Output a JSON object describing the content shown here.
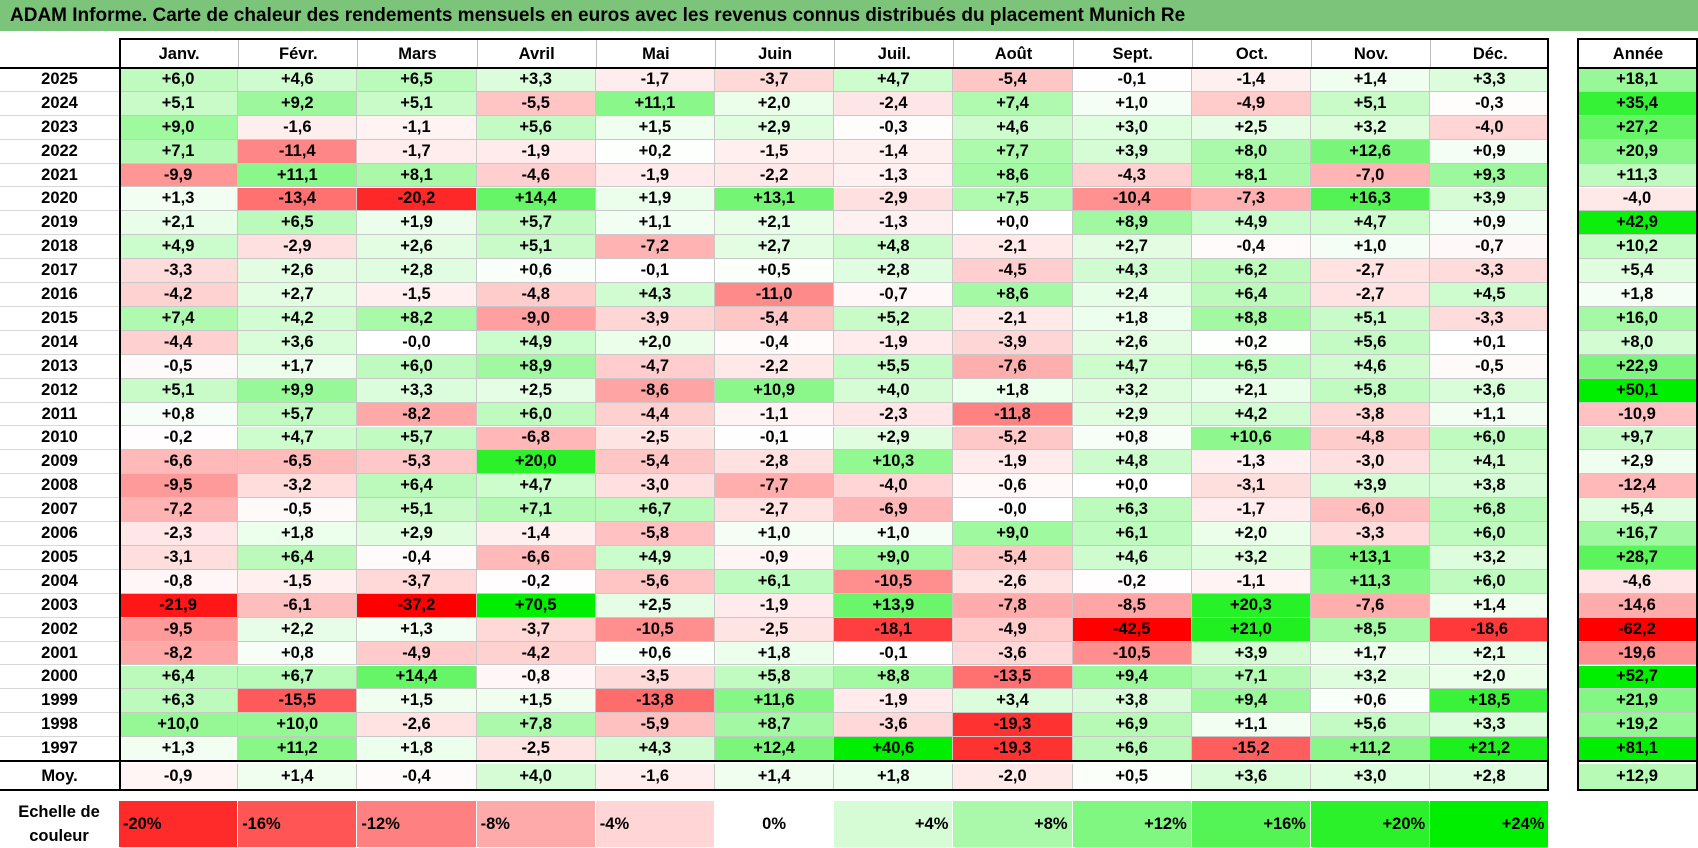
{
  "title": "ADAM Informe. Carte de chaleur des rendements mensuels en euros avec les revenus connus distribués du placement Munich Re",
  "chart_data": {
    "type": "heatmap",
    "title": "ADAM Informe. Carte de chaleur des rendements mensuels en euros avec les revenus connus distribués du placement Munich Re",
    "months": [
      "Janv.",
      "Févr.",
      "Mars",
      "Avril",
      "Mai",
      "Juin",
      "Juil.",
      "Août",
      "Sept.",
      "Oct.",
      "Nov.",
      "Déc."
    ],
    "annual_header": "Année",
    "rows": [
      {
        "year": "2025",
        "values": [
          "+6,0",
          "+4,6",
          "+6,5",
          "+3,3",
          "-1,7",
          "-3,7",
          "+4,7",
          "-5,4",
          "-0,1",
          "-1,4",
          "+1,4",
          "+3,3"
        ],
        "annual": "+18,1"
      },
      {
        "year": "2024",
        "values": [
          "+5,1",
          "+9,2",
          "+5,1",
          "-5,5",
          "+11,1",
          "+2,0",
          "-2,4",
          "+7,4",
          "+1,0",
          "-4,9",
          "+5,1",
          "-0,3"
        ],
        "annual": "+35,4"
      },
      {
        "year": "2023",
        "values": [
          "+9,0",
          "-1,6",
          "-1,1",
          "+5,6",
          "+1,5",
          "+2,9",
          "-0,3",
          "+4,6",
          "+3,0",
          "+2,5",
          "+3,2",
          "-4,0"
        ],
        "annual": "+27,2"
      },
      {
        "year": "2022",
        "values": [
          "+7,1",
          "-11,4",
          "-1,7",
          "-1,9",
          "+0,2",
          "-1,5",
          "-1,4",
          "+7,7",
          "+3,9",
          "+8,0",
          "+12,6",
          "+0,9"
        ],
        "annual": "+20,9"
      },
      {
        "year": "2021",
        "values": [
          "-9,9",
          "+11,1",
          "+8,1",
          "-4,6",
          "-1,9",
          "-2,2",
          "-1,3",
          "+8,6",
          "-4,3",
          "+8,1",
          "-7,0",
          "+9,3"
        ],
        "annual": "+11,3"
      },
      {
        "year": "2020",
        "values": [
          "+1,3",
          "-13,4",
          "-20,2",
          "+14,4",
          "+1,9",
          "+13,1",
          "-2,9",
          "+7,5",
          "-10,4",
          "-7,3",
          "+16,3",
          "+3,9"
        ],
        "annual": "-4,0"
      },
      {
        "year": "2019",
        "values": [
          "+2,1",
          "+6,5",
          "+1,9",
          "+5,7",
          "+1,1",
          "+2,1",
          "-1,3",
          "+0,0",
          "+8,9",
          "+4,9",
          "+4,7",
          "+0,9"
        ],
        "annual": "+42,9"
      },
      {
        "year": "2018",
        "values": [
          "+4,9",
          "-2,9",
          "+2,6",
          "+5,1",
          "-7,2",
          "+2,7",
          "+4,8",
          "-2,1",
          "+2,7",
          "-0,4",
          "+1,0",
          "-0,7"
        ],
        "annual": "+10,2"
      },
      {
        "year": "2017",
        "values": [
          "-3,3",
          "+2,6",
          "+2,8",
          "+0,6",
          "-0,1",
          "+0,5",
          "+2,8",
          "-4,5",
          "+4,3",
          "+6,2",
          "-2,7",
          "-3,3"
        ],
        "annual": "+5,4"
      },
      {
        "year": "2016",
        "values": [
          "-4,2",
          "+2,7",
          "-1,5",
          "-4,8",
          "+4,3",
          "-11,0",
          "-0,7",
          "+8,6",
          "+2,4",
          "+6,4",
          "-2,7",
          "+4,5"
        ],
        "annual": "+1,8"
      },
      {
        "year": "2015",
        "values": [
          "+7,4",
          "+4,2",
          "+8,2",
          "-9,0",
          "-3,9",
          "-5,4",
          "+5,2",
          "-2,1",
          "+1,8",
          "+8,8",
          "+5,1",
          "-3,3"
        ],
        "annual": "+16,0"
      },
      {
        "year": "2014",
        "values": [
          "-4,4",
          "+3,6",
          "-0,0",
          "+4,9",
          "+2,0",
          "-0,4",
          "-1,9",
          "-3,9",
          "+2,6",
          "+0,2",
          "+5,6",
          "+0,1"
        ],
        "annual": "+8,0"
      },
      {
        "year": "2013",
        "values": [
          "-0,5",
          "+1,7",
          "+6,0",
          "+8,9",
          "-4,7",
          "-2,2",
          "+5,5",
          "-7,6",
          "+4,7",
          "+6,5",
          "+4,6",
          "-0,5"
        ],
        "annual": "+22,9"
      },
      {
        "year": "2012",
        "values": [
          "+5,1",
          "+9,9",
          "+3,3",
          "+2,5",
          "-8,6",
          "+10,9",
          "+4,0",
          "+1,8",
          "+3,2",
          "+2,1",
          "+5,8",
          "+3,6"
        ],
        "annual": "+50,1"
      },
      {
        "year": "2011",
        "values": [
          "+0,8",
          "+5,7",
          "-8,2",
          "+6,0",
          "-4,4",
          "-1,1",
          "-2,3",
          "-11,8",
          "+2,9",
          "+4,2",
          "-3,8",
          "+1,1"
        ],
        "annual": "-10,9"
      },
      {
        "year": "2010",
        "values": [
          "-0,2",
          "+4,7",
          "+5,7",
          "-6,8",
          "-2,5",
          "-0,1",
          "+2,9",
          "-5,2",
          "+0,8",
          "+10,6",
          "-4,8",
          "+6,0"
        ],
        "annual": "+9,7"
      },
      {
        "year": "2009",
        "values": [
          "-6,6",
          "-6,5",
          "-5,3",
          "+20,0",
          "-5,4",
          "-2,8",
          "+10,3",
          "-1,9",
          "+4,8",
          "-1,3",
          "-3,0",
          "+4,1"
        ],
        "annual": "+2,9"
      },
      {
        "year": "2008",
        "values": [
          "-9,5",
          "-3,2",
          "+6,4",
          "+4,7",
          "-3,0",
          "-7,7",
          "-4,0",
          "-0,6",
          "+0,0",
          "-3,1",
          "+3,9",
          "+3,8"
        ],
        "annual": "-12,4"
      },
      {
        "year": "2007",
        "values": [
          "-7,2",
          "-0,5",
          "+5,1",
          "+7,1",
          "+6,7",
          "-2,7",
          "-6,9",
          "-0,0",
          "+6,3",
          "-1,7",
          "-6,0",
          "+6,8"
        ],
        "annual": "+5,4"
      },
      {
        "year": "2006",
        "values": [
          "-2,3",
          "+1,8",
          "+2,9",
          "-1,4",
          "-5,8",
          "+1,0",
          "+1,0",
          "+9,0",
          "+6,1",
          "+2,0",
          "-3,3",
          "+6,0"
        ],
        "annual": "+16,7"
      },
      {
        "year": "2005",
        "values": [
          "-3,1",
          "+6,4",
          "-0,4",
          "-6,6",
          "+4,9",
          "-0,9",
          "+9,0",
          "-5,4",
          "+4,6",
          "+3,2",
          "+13,1",
          "+3,2"
        ],
        "annual": "+28,7"
      },
      {
        "year": "2004",
        "values": [
          "-0,8",
          "-1,5",
          "-3,7",
          "-0,2",
          "-5,6",
          "+6,1",
          "-10,5",
          "-2,6",
          "-0,2",
          "-1,1",
          "+11,3",
          "+6,0"
        ],
        "annual": "-4,6"
      },
      {
        "year": "2003",
        "values": [
          "-21,9",
          "-6,1",
          "-37,2",
          "+70,5",
          "+2,5",
          "-1,9",
          "+13,9",
          "-7,8",
          "-8,5",
          "+20,3",
          "-7,6",
          "+1,4"
        ],
        "annual": "-14,6"
      },
      {
        "year": "2002",
        "values": [
          "-9,5",
          "+2,2",
          "+1,3",
          "-3,7",
          "-10,5",
          "-2,5",
          "-18,1",
          "-4,9",
          "-42,5",
          "+21,0",
          "+8,5",
          "-18,6"
        ],
        "annual": "-62,2"
      },
      {
        "year": "2001",
        "values": [
          "-8,2",
          "+0,8",
          "-4,9",
          "-4,2",
          "+0,6",
          "+1,8",
          "-0,1",
          "-3,6",
          "-10,5",
          "+3,9",
          "+1,7",
          "+2,1"
        ],
        "annual": "-19,6"
      },
      {
        "year": "2000",
        "values": [
          "+6,4",
          "+6,7",
          "+14,4",
          "-0,8",
          "-3,5",
          "+5,8",
          "+8,8",
          "-13,5",
          "+9,4",
          "+7,1",
          "+3,2",
          "+2,0"
        ],
        "annual": "+52,7"
      },
      {
        "year": "1999",
        "values": [
          "+6,3",
          "-15,5",
          "+1,5",
          "+1,5",
          "-13,8",
          "+11,6",
          "-1,9",
          "+3,4",
          "+3,8",
          "+9,4",
          "+0,6",
          "+18,5"
        ],
        "annual": "+21,9"
      },
      {
        "year": "1998",
        "values": [
          "+10,0",
          "+10,0",
          "-2,6",
          "+7,8",
          "-5,9",
          "+8,7",
          "-3,6",
          "-19,3",
          "+6,9",
          "+1,1",
          "+5,6",
          "+3,3"
        ],
        "annual": "+19,2"
      },
      {
        "year": "1997",
        "values": [
          "+1,3",
          "+11,2",
          "+1,8",
          "-2,5",
          "+4,3",
          "+12,4",
          "+40,6",
          "-19,3",
          "+6,6",
          "-15,2",
          "+11,2",
          "+21,2"
        ],
        "annual": "+81,1"
      }
    ],
    "average": {
      "label": "Moy.",
      "values": [
        "-0,9",
        "+1,4",
        "-0,4",
        "+4,0",
        "-1,6",
        "+1,4",
        "+1,8",
        "-2,0",
        "+0,5",
        "+3,6",
        "+3,0",
        "+2,8"
      ],
      "annual": "+12,9"
    },
    "scale": {
      "label_line1": "Echelle de",
      "label_line2": "couleur",
      "ticks": [
        "-20%",
        "-16%",
        "-12%",
        "-8%",
        "-4%",
        "0%",
        "+4%",
        "+8%",
        "+12%",
        "+16%",
        "+20%",
        "+24%"
      ],
      "tick_values": [
        -20,
        -16,
        -12,
        -8,
        -4,
        0,
        4,
        8,
        12,
        16,
        20,
        24
      ]
    },
    "colors": {
      "negative_max": "#ff0000",
      "neutral": "#ffffff",
      "positive_max": "#00ee00",
      "title_bar": "#7cc47a"
    }
  }
}
